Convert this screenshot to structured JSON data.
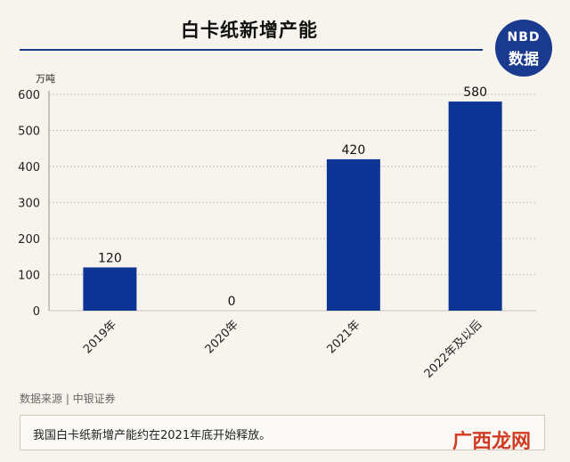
{
  "title": "白卡纸新增产能",
  "logo": {
    "line1": "NBD",
    "line2": "数据"
  },
  "chart_data": {
    "type": "bar",
    "title": "白卡纸新增产能",
    "ylabel": "万吨",
    "xlabel": "",
    "categories": [
      "2019年",
      "2020年",
      "2021年",
      "2022年及以后"
    ],
    "values": [
      120,
      0,
      420,
      580
    ],
    "data_labels": [
      "120",
      "0",
      "420",
      "580"
    ],
    "yticks": [
      0,
      100,
      200,
      300,
      400,
      500,
      600
    ],
    "ylim": [
      0,
      600
    ],
    "grid": true,
    "bar_color": "#0e3596"
  },
  "source": "数据来源 | 中银证券",
  "note": "我国白卡纸新增产能约在2021年底开始释放。",
  "badge": "广西龙网"
}
